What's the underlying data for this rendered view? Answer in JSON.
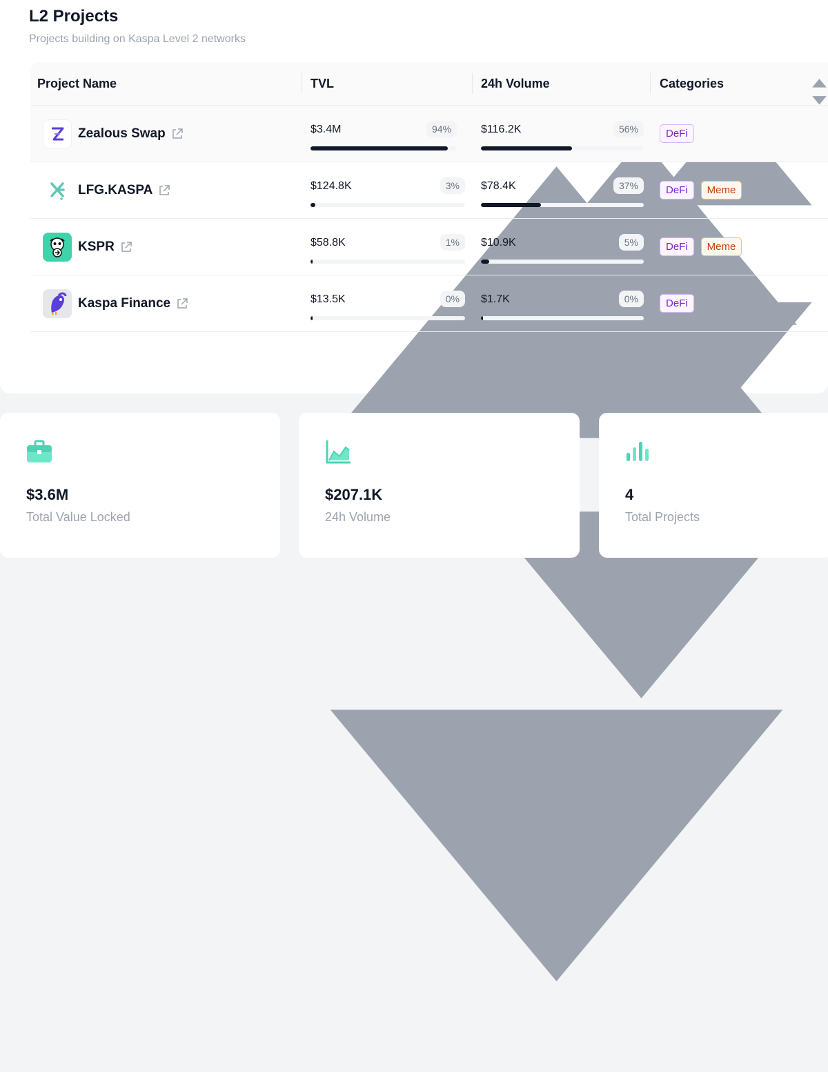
{
  "header": {
    "title": "L2 Projects",
    "subtitle": "Projects building on Kaspa Level 2 networks"
  },
  "table": {
    "columns": [
      "Project Name",
      "TVL",
      "24h Volume",
      "Categories"
    ],
    "rows": [
      {
        "name": "Zealous Swap",
        "logo": "zealous-swap-logo",
        "tvl": "$3.4M",
        "tvl_pct": "94%",
        "tvl_fill": 0.94,
        "volume": "$116.2K",
        "volume_pct": "56%",
        "volume_fill": 0.56,
        "categories": [
          "DeFi"
        ]
      },
      {
        "name": "LFG.KASPA",
        "logo": "lfg-kaspa-logo",
        "tvl": "$124.8K",
        "tvl_pct": "3%",
        "tvl_fill": 0.03,
        "volume": "$78.4K",
        "volume_pct": "37%",
        "volume_fill": 0.37,
        "categories": [
          "DeFi",
          "Meme"
        ]
      },
      {
        "name": "KSPR",
        "logo": "kspr-logo",
        "tvl": "$58.8K",
        "tvl_pct": "1%",
        "tvl_fill": 0.01,
        "volume": "$10.9K",
        "volume_pct": "5%",
        "volume_fill": 0.05,
        "categories": [
          "DeFi",
          "Meme"
        ]
      },
      {
        "name": "Kaspa Finance",
        "logo": "kaspa-finance-logo",
        "tvl": "$13.5K",
        "tvl_pct": "0%",
        "tvl_fill": 0.0,
        "volume": "$1.7K",
        "volume_pct": "0%",
        "volume_fill": 0.0,
        "categories": [
          "DeFi"
        ]
      }
    ]
  },
  "stats": [
    {
      "icon": "briefcase-icon",
      "value": "$3.6M",
      "label": "Total Value Locked"
    },
    {
      "icon": "area-chart-icon",
      "value": "$207.1K",
      "label": "24h Volume"
    },
    {
      "icon": "bar-chart-icon",
      "value": "4",
      "label": "Total Projects"
    }
  ],
  "colors": {
    "accent": "#4fd1b5",
    "bar_fill": "#111827",
    "defi_text": "#7e22ce",
    "meme_text": "#c2410c"
  }
}
